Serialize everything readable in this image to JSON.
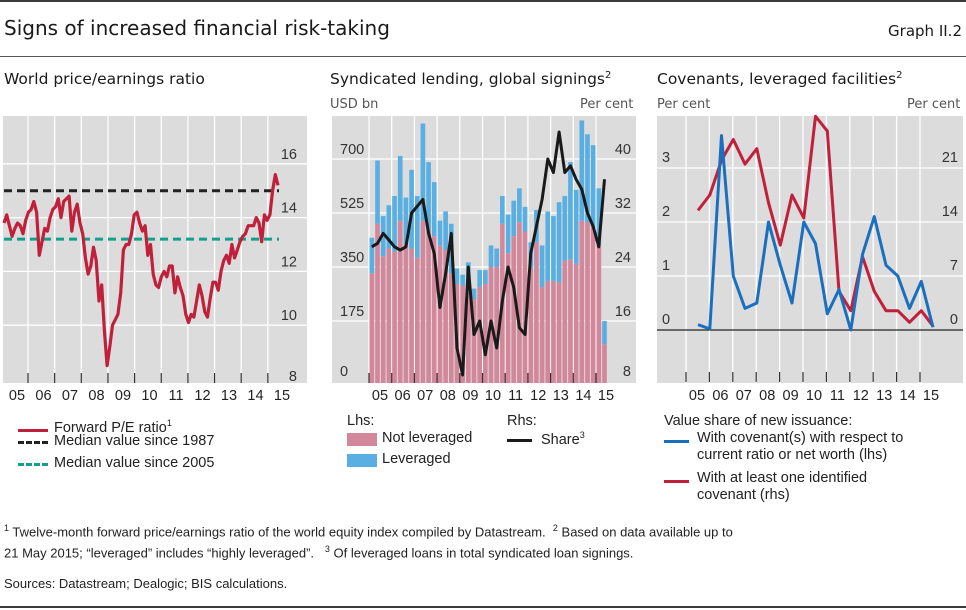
{
  "header": {
    "title": "Signs of increased financial risk-taking",
    "graph_number": "Graph II.2"
  },
  "panels": {
    "left": {
      "title": "World price/earnings ratio",
      "legend": [
        {
          "label": "Forward P/E ratio",
          "sup": "1",
          "color": "#c0203a",
          "style": "solid"
        },
        {
          "label": "Median value since 1987",
          "color": "#222222",
          "style": "dashed"
        },
        {
          "label": "Median value since 2005",
          "color": "#13a08a",
          "style": "dashed"
        }
      ]
    },
    "middle": {
      "title": "Syndicated lending, global signings",
      "title_sup": "2",
      "lhs_unit": "USD bn",
      "rhs_unit": "Per cent",
      "legend_lhs_header": "Lhs:",
      "legend_rhs_header": "Rhs:",
      "legend": [
        {
          "label": "Not leveraged",
          "color": "#d3879a",
          "style": "box"
        },
        {
          "label": "Leveraged",
          "color": "#5aafe2",
          "style": "box"
        },
        {
          "label": "Share",
          "sup": "3",
          "color": "#1a1a1a",
          "style": "solid"
        }
      ]
    },
    "right": {
      "title": "Covenants, leveraged facilities",
      "title_sup": "2",
      "lhs_unit": "Per cent",
      "rhs_unit": "Per cent",
      "legend_header": "Value share of new issuance:",
      "legend": [
        {
          "label_line1": "With covenant(s) with respect to",
          "label_line2": "current ratio or net worth (lhs)",
          "color": "#1a6fbf"
        },
        {
          "label_line1": "With at least one identified",
          "label_line2": "covenant (rhs)",
          "color": "#c0203a"
        }
      ]
    }
  },
  "footnotes": {
    "line1": "Twelve-month forward price/earnings ratio of the world equity index compiled by Datastream.",
    "line1_sup": "1",
    "line1b_sup": "2",
    "line1b": "Based on data available up to",
    "line2": "21 May 2015; “leveraged” includes “highly leveraged”.",
    "line2_sup": "3",
    "line2b": "Of leveraged loans in total syndicated loan signings.",
    "sources": "Sources: Datastream; Dealogic; BIS calculations."
  },
  "chart_data": [
    {
      "type": "line",
      "title": "World price/earnings ratio",
      "x_tick_labels": [
        "05",
        "06",
        "07",
        "08",
        "09",
        "10",
        "11",
        "12",
        "13",
        "14",
        "15"
      ],
      "y_ticks": [
        8,
        10,
        12,
        14,
        16
      ],
      "ylim": [
        8,
        17.8
      ],
      "y_axis_side": "right",
      "grid": true,
      "legend_position": "bottom",
      "reference_lines": [
        {
          "name": "Median value since 1987",
          "value": 15.0,
          "color": "#222222",
          "style": "dashed"
        },
        {
          "name": "Median value since 2005",
          "value": 13.2,
          "color": "#13a08a",
          "style": "dashed"
        }
      ],
      "series": [
        {
          "name": "Forward P/E ratio",
          "color": "#c0203a",
          "x_start": 2005.0,
          "x_step": 0.0833,
          "values": [
            13.8,
            14.1,
            13.7,
            13.3,
            13.6,
            13.8,
            13.7,
            13.4,
            13.9,
            14.2,
            14.3,
            14.6,
            14.2,
            12.6,
            13.1,
            13.6,
            13.5,
            14.0,
            14.3,
            14.4,
            14.7,
            14.0,
            14.6,
            14.7,
            14.8,
            13.5,
            14.2,
            14.5,
            13.8,
            13.4,
            12.5,
            11.9,
            12.2,
            12.9,
            12.4,
            10.9,
            11.5,
            9.8,
            8.5,
            9.2,
            10.0,
            10.2,
            10.4,
            11.2,
            12.8,
            13.0,
            13.0,
            13.4,
            14.1,
            14.2,
            13.8,
            13.5,
            13.7,
            12.6,
            13.0,
            11.9,
            11.5,
            11.4,
            11.8,
            12.0,
            11.8,
            12.2,
            12.2,
            11.2,
            11.8,
            11.4,
            11.1,
            10.4,
            10.1,
            10.4,
            10.3,
            10.9,
            11.5,
            11.1,
            10.5,
            10.3,
            11.0,
            11.6,
            11.6,
            11.3,
            12.0,
            12.4,
            12.6,
            12.3,
            13.0,
            12.5,
            12.8,
            13.1,
            13.3,
            13.4,
            13.7,
            13.7,
            13.7,
            14.0,
            13.8,
            13.1,
            14.1,
            13.9,
            14.1,
            15.0,
            15.6,
            15.2
          ]
        }
      ]
    },
    {
      "type": "bar",
      "title": "Syndicated lending, global signings",
      "stacked": true,
      "x_tick_labels": [
        "05",
        "06",
        "07",
        "08",
        "09",
        "10",
        "11",
        "12",
        "13",
        "14",
        "15"
      ],
      "frequency": "quarterly",
      "ylabel_left": "USD bn",
      "ylabel_right": "Per cent",
      "ylim_left": [
        0,
        875
      ],
      "yticks_left": [
        0,
        175,
        350,
        525,
        700
      ],
      "ylim_right": [
        8,
        48
      ],
      "yticks_right": [
        8,
        16,
        24,
        32,
        40
      ],
      "grid": true,
      "legend_position": "bottom",
      "categories": [
        "2005Q1",
        "2005Q2",
        "2005Q3",
        "2005Q4",
        "2006Q1",
        "2006Q2",
        "2006Q3",
        "2006Q4",
        "2007Q1",
        "2007Q2",
        "2007Q3",
        "2007Q4",
        "2008Q1",
        "2008Q2",
        "2008Q3",
        "2008Q4",
        "2009Q1",
        "2009Q2",
        "2009Q3",
        "2009Q4",
        "2010Q1",
        "2010Q2",
        "2010Q3",
        "2010Q4",
        "2011Q1",
        "2011Q2",
        "2011Q3",
        "2011Q4",
        "2012Q1",
        "2012Q2",
        "2012Q3",
        "2012Q4",
        "2013Q1",
        "2013Q2",
        "2013Q3",
        "2013Q4",
        "2014Q1",
        "2014Q2",
        "2014Q3",
        "2014Q4",
        "2015Q1",
        "2015Q2"
      ],
      "series": [
        {
          "name": "Not leveraged",
          "axis": "left",
          "color": "#d3879a",
          "values": [
            330,
            490,
            385,
            410,
            400,
            500,
            425,
            410,
            380,
            500,
            470,
            450,
            420,
            405,
            330,
            295,
            290,
            300,
            245,
            285,
            295,
            350,
            350,
            490,
            395,
            450,
            495,
            465,
            345,
            430,
            285,
            305,
            305,
            300,
            370,
            375,
            360,
            500,
            495,
            480,
            420,
            100
          ]
        },
        {
          "name": "Leveraged",
          "axis": "left",
          "color": "#5aafe2",
          "values": [
            115,
            205,
            130,
            140,
            180,
            210,
            150,
            255,
            200,
            315,
            220,
            175,
            80,
            125,
            160,
            50,
            35,
            65,
            35,
            55,
            45,
            70,
            60,
            90,
            125,
            115,
            110,
            80,
            85,
            105,
            135,
            225,
            210,
            260,
            210,
            315,
            240,
            325,
            285,
            265,
            185,
            75
          ]
        },
        {
          "name": "Share",
          "axis": "right",
          "type": "line",
          "color": "#1a1a1a",
          "values": [
            27,
            27.5,
            29,
            28,
            27,
            26.5,
            27,
            32,
            33,
            34,
            29,
            26,
            18,
            23,
            29,
            12,
            8,
            24,
            14,
            16,
            11,
            16,
            12,
            19,
            24,
            21,
            15,
            14,
            26,
            30,
            34,
            40,
            38,
            44,
            38,
            39,
            37,
            35.5,
            32,
            30,
            27,
            37
          ]
        }
      ]
    },
    {
      "type": "line",
      "title": "Covenants, leveraged facilities",
      "x_tick_labels": [
        "05",
        "06",
        "07",
        "08",
        "09",
        "10",
        "11",
        "12",
        "13",
        "14",
        "15"
      ],
      "frequency": "semi-annual",
      "ylabel_left": "Per cent",
      "ylabel_right": "Per cent",
      "ylim_left": [
        -1,
        4
      ],
      "yticks_left": [
        0,
        1,
        2,
        3
      ],
      "ylim_right": [
        -7,
        28
      ],
      "yticks_right": [
        0,
        7,
        14,
        21
      ],
      "grid": true,
      "legend_position": "bottom",
      "categories": [
        "2005H1",
        "2005H2",
        "2006H1",
        "2006H2",
        "2007H1",
        "2007H2",
        "2008H1",
        "2008H2",
        "2009H1",
        "2009H2",
        "2010H1",
        "2010H2",
        "2011H1",
        "2011H2",
        "2012H1",
        "2012H2",
        "2013H1",
        "2013H2",
        "2014H1",
        "2014H2",
        "2015H1"
      ],
      "series": [
        {
          "name": "With covenant(s) with respect to current ratio or net worth",
          "axis": "left",
          "color": "#1a6fbf",
          "values": [
            0.1,
            0.02,
            3.6,
            1.0,
            0.4,
            0.5,
            2.0,
            1.2,
            0.5,
            2.0,
            1.6,
            0.3,
            0.75,
            0.0,
            1.4,
            2.1,
            1.2,
            1.0,
            0.4,
            0.9,
            0.05
          ]
        },
        {
          "name": "With at least one identified covenant",
          "axis": "right",
          "color": "#c0203a",
          "values": [
            15.5,
            17.5,
            22,
            24.7,
            21.5,
            23.5,
            16.5,
            11,
            17.5,
            14.5,
            27.7,
            25.8,
            5,
            2.5,
            9.5,
            5,
            2.5,
            2.5,
            1,
            2.5,
            0.5
          ]
        }
      ]
    }
  ]
}
